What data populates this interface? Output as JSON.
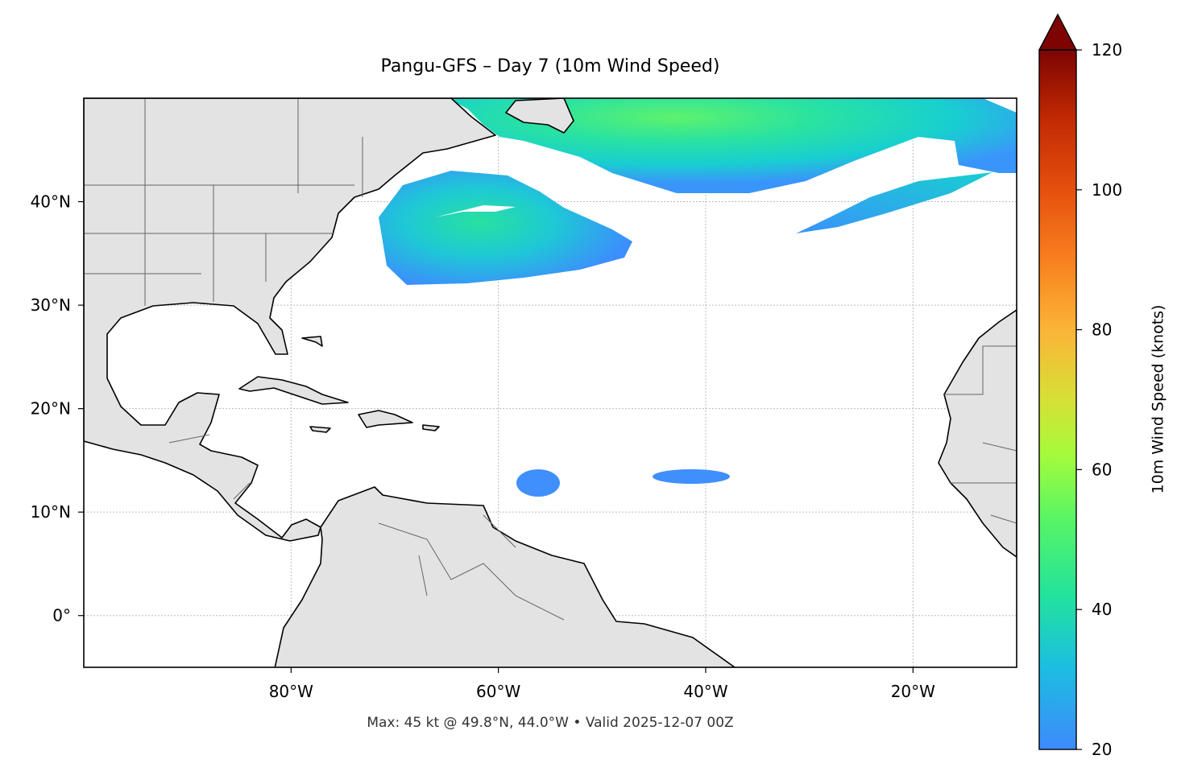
{
  "title": "Pangu-GFS – Day 7 (10m Wind Speed)",
  "footer": "Max: 45 kt @ 49.8°N, 44.0°W • Valid 2025-12-07 00Z",
  "map": {
    "xlim": [
      -100,
      -10
    ],
    "ylim": [
      -5,
      50
    ],
    "xticks": [
      {
        "value": -80,
        "label": "80°W"
      },
      {
        "value": -60,
        "label": "60°W"
      },
      {
        "value": -40,
        "label": "40°W"
      },
      {
        "value": -20,
        "label": "20°W"
      }
    ],
    "yticks": [
      {
        "value": 0,
        "label": "0°"
      },
      {
        "value": 10,
        "label": "10°N"
      },
      {
        "value": 20,
        "label": "20°N"
      },
      {
        "value": 30,
        "label": "30°N"
      },
      {
        "value": 40,
        "label": "40°N"
      }
    ],
    "grid": true
  },
  "colorbar": {
    "label": "10m Wind Speed (knots)",
    "clim": [
      20,
      120
    ],
    "ticks": [
      20,
      40,
      60,
      80,
      100,
      120
    ]
  }
}
